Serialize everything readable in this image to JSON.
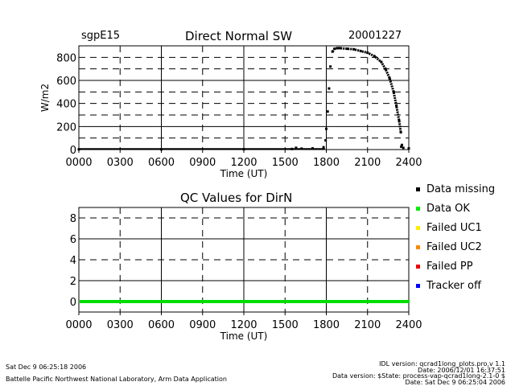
{
  "header": {
    "site": "sgpE15",
    "date": "20001227"
  },
  "chart_data": [
    {
      "type": "scatter",
      "title": "Direct Normal SW",
      "xlabel": "Time (UT)",
      "ylabel": "W/m2",
      "xlim": [
        0,
        2400
      ],
      "ylim": [
        0,
        900
      ],
      "x_ticks": [
        "0000",
        "0300",
        "0600",
        "0900",
        "1200",
        "1500",
        "1800",
        "2100",
        "2400"
      ],
      "y_ticks": [
        "0",
        "200",
        "400",
        "600",
        "800"
      ],
      "grid": true,
      "series": [
        {
          "color": "#000000",
          "x_hours": [
            0.0,
            6.0,
            12.0,
            15.5,
            15.8,
            16.2,
            17.0,
            17.8,
            17.95,
            18.0,
            18.1,
            18.2,
            18.3,
            18.45,
            18.6,
            18.8,
            19.0,
            19.5,
            20.0,
            20.5,
            21.0,
            21.5,
            22.0,
            22.3,
            22.6,
            22.9,
            23.1,
            23.3,
            23.42,
            23.45,
            23.5,
            23.6,
            24.0
          ],
          "y": [
            2,
            2,
            3,
            5,
            15,
            8,
            10,
            20,
            80,
            180,
            330,
            530,
            720,
            850,
            875,
            880,
            880,
            875,
            870,
            855,
            840,
            810,
            760,
            700,
            620,
            500,
            380,
            250,
            150,
            25,
            40,
            15,
            10
          ]
        }
      ]
    },
    {
      "type": "scatter",
      "title": "QC Values for DirN",
      "xlabel": "Time (UT)",
      "ylabel": "",
      "xlim": [
        0,
        2400
      ],
      "ylim": [
        -1,
        9
      ],
      "x_ticks": [
        "0000",
        "0300",
        "0600",
        "0900",
        "1200",
        "1500",
        "1800",
        "2100",
        "2400"
      ],
      "y_ticks": [
        "0",
        "2",
        "4",
        "6",
        "8"
      ],
      "grid": true,
      "series": [
        {
          "name": "Data OK",
          "color": "#00dd00",
          "x_hours": [
            0,
            24
          ],
          "y": [
            0,
            0
          ]
        }
      ]
    }
  ],
  "legend": [
    {
      "label": "Data missing",
      "color": "#000000"
    },
    {
      "label": "Data OK",
      "color": "#00ee00"
    },
    {
      "label": "Failed UC1",
      "color": "#ffee00"
    },
    {
      "label": "Failed UC2",
      "color": "#ff8800"
    },
    {
      "label": "Failed PP",
      "color": "#ee0000"
    },
    {
      "label": "Tracker off",
      "color": "#0000ff"
    }
  ],
  "footer": {
    "run_date": "Sat Dec  9 06:25:18 2006",
    "lab": "Battelle Pacific Northwest National Laboratory, Arm Data Application",
    "idl_version": "IDL version: qcrad1long_plots.pro,v 1.1",
    "idl_date": "Date: 2006/12/01 16:37:51",
    "data_version": "Data version: $State: process-vap-qcrad1long-2.1-0 $",
    "data_date": "Date: Sat Dec  9 06:25:04 2006"
  }
}
